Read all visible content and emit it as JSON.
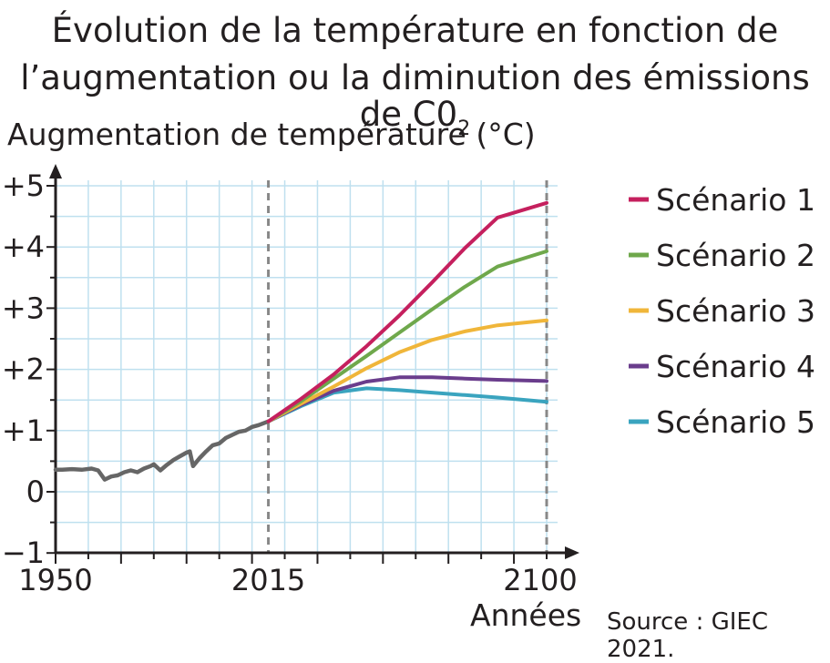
{
  "title_line1": "Évolution de la température en fonction de",
  "title_line2": "l’augmentation ou la diminution des émissions de C0",
  "title_sub": "2",
  "source": "Source : GIEC 2021.",
  "chart_data": {
    "type": "line",
    "ylabel": "Augmentation de température (°C)",
    "xlabel": "Années",
    "xlim": [
      1950,
      2107
    ],
    "ylim": [
      -1,
      5.2
    ],
    "x_ticks": [
      1950,
      2015,
      2100
    ],
    "y_ticks": [
      "−1",
      "0",
      "+1",
      "+2",
      "+3",
      "+4",
      "+5"
    ],
    "y_tick_values": [
      -1,
      0,
      1,
      2,
      3,
      4,
      5
    ],
    "reference_lines_x": [
      2015,
      2100
    ],
    "grid": true,
    "legend_position": "right",
    "historical": {
      "color": "#666666",
      "points": [
        [
          1950,
          0.36
        ],
        [
          1952,
          0.36
        ],
        [
          1955,
          0.37
        ],
        [
          1958,
          0.36
        ],
        [
          1961,
          0.38
        ],
        [
          1963,
          0.35
        ],
        [
          1965,
          0.2
        ],
        [
          1967,
          0.25
        ],
        [
          1969,
          0.27
        ],
        [
          1971,
          0.32
        ],
        [
          1973,
          0.35
        ],
        [
          1975,
          0.32
        ],
        [
          1977,
          0.38
        ],
        [
          1979,
          0.42
        ],
        [
          1980,
          0.45
        ],
        [
          1982,
          0.35
        ],
        [
          1984,
          0.44
        ],
        [
          1986,
          0.52
        ],
        [
          1988,
          0.58
        ],
        [
          1990,
          0.64
        ],
        [
          1991,
          0.66
        ],
        [
          1992,
          0.42
        ],
        [
          1994,
          0.55
        ],
        [
          1996,
          0.66
        ],
        [
          1998,
          0.76
        ],
        [
          2000,
          0.79
        ],
        [
          2002,
          0.88
        ],
        [
          2004,
          0.93
        ],
        [
          2006,
          0.98
        ],
        [
          2008,
          1.0
        ],
        [
          2010,
          1.06
        ],
        [
          2012,
          1.09
        ],
        [
          2015,
          1.15
        ]
      ]
    },
    "series": [
      {
        "name": "Scénario 1",
        "color": "#c5205e",
        "points": [
          [
            2015,
            1.15
          ],
          [
            2025,
            1.52
          ],
          [
            2035,
            1.92
          ],
          [
            2045,
            2.38
          ],
          [
            2055,
            2.88
          ],
          [
            2065,
            3.42
          ],
          [
            2075,
            3.98
          ],
          [
            2085,
            4.48
          ],
          [
            2100,
            4.72
          ]
        ]
      },
      {
        "name": "Scénario 2",
        "color": "#6fa84c",
        "points": [
          [
            2015,
            1.15
          ],
          [
            2025,
            1.48
          ],
          [
            2035,
            1.85
          ],
          [
            2045,
            2.22
          ],
          [
            2055,
            2.6
          ],
          [
            2065,
            2.98
          ],
          [
            2075,
            3.35
          ],
          [
            2085,
            3.68
          ],
          [
            2100,
            3.93
          ]
        ]
      },
      {
        "name": "Scénario 3",
        "color": "#f0b63a",
        "points": [
          [
            2015,
            1.15
          ],
          [
            2025,
            1.44
          ],
          [
            2035,
            1.72
          ],
          [
            2045,
            2.02
          ],
          [
            2055,
            2.28
          ],
          [
            2065,
            2.48
          ],
          [
            2075,
            2.62
          ],
          [
            2085,
            2.72
          ],
          [
            2100,
            2.8
          ]
        ]
      },
      {
        "name": "Scénario 4",
        "color": "#6a3d8c",
        "points": [
          [
            2015,
            1.15
          ],
          [
            2025,
            1.42
          ],
          [
            2035,
            1.65
          ],
          [
            2045,
            1.8
          ],
          [
            2055,
            1.87
          ],
          [
            2065,
            1.87
          ],
          [
            2075,
            1.85
          ],
          [
            2085,
            1.83
          ],
          [
            2100,
            1.81
          ]
        ]
      },
      {
        "name": "Scénario 5",
        "color": "#3aa4bf",
        "points": [
          [
            2015,
            1.15
          ],
          [
            2025,
            1.4
          ],
          [
            2035,
            1.62
          ],
          [
            2045,
            1.69
          ],
          [
            2055,
            1.66
          ],
          [
            2065,
            1.62
          ],
          [
            2075,
            1.58
          ],
          [
            2085,
            1.54
          ],
          [
            2100,
            1.47
          ]
        ]
      }
    ]
  }
}
